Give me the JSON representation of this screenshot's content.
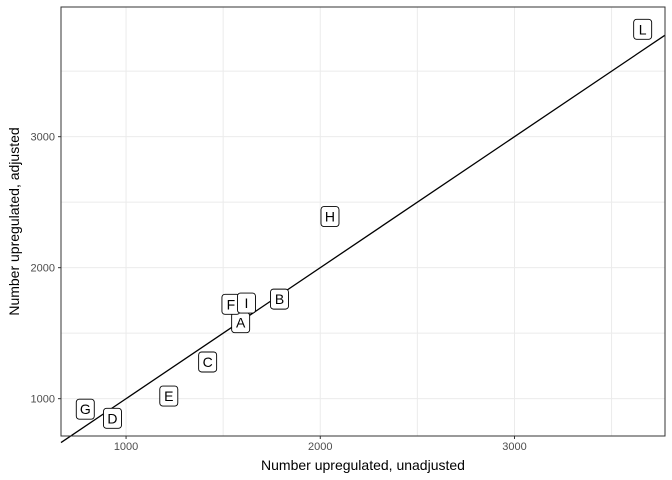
{
  "chart_data": {
    "type": "scatter",
    "xlabel": "Number upregulated, unadjusted",
    "ylabel": "Number upregulated, adjusted",
    "xlim": [
      665,
      3775
    ],
    "ylim": [
      715,
      3990
    ],
    "x_ticks": [
      1000,
      2000,
      3000
    ],
    "y_ticks": [
      1000,
      2000,
      3000
    ],
    "grid": true,
    "points": [
      {
        "label": "A",
        "x": 1590,
        "y": 1580
      },
      {
        "label": "B",
        "x": 1790,
        "y": 1760
      },
      {
        "label": "C",
        "x": 1420,
        "y": 1280
      },
      {
        "label": "D",
        "x": 930,
        "y": 850
      },
      {
        "label": "E",
        "x": 1220,
        "y": 1020
      },
      {
        "label": "F",
        "x": 1540,
        "y": 1720
      },
      {
        "label": "G",
        "x": 790,
        "y": 920
      },
      {
        "label": "H",
        "x": 2050,
        "y": 2390
      },
      {
        "label": "I",
        "x": 1620,
        "y": 1730
      },
      {
        "label": "L",
        "x": 3660,
        "y": 3820
      }
    ],
    "fit_line": {
      "x": [
        665,
        3775
      ],
      "y": [
        665,
        3775
      ]
    }
  }
}
